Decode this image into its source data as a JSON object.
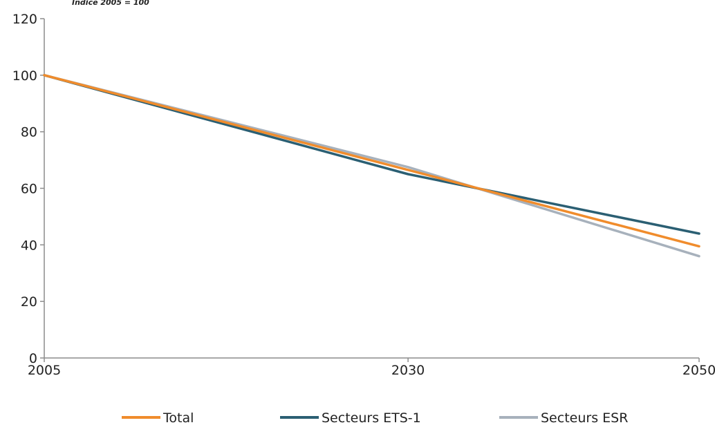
{
  "chart_data": {
    "type": "line",
    "subtitle": "Indice 2005 = 100",
    "x": [
      2005,
      2030,
      2050
    ],
    "xticks": [
      "2005",
      "2030",
      "2050"
    ],
    "yticks": [
      "0",
      "20",
      "40",
      "60",
      "80",
      "100",
      "120"
    ],
    "ylim": [
      0,
      120
    ],
    "grid": false,
    "legend_position": "bottom",
    "series": [
      {
        "name": "Total",
        "color": "#F08C2C",
        "values": [
          100,
          66.5,
          39.5
        ]
      },
      {
        "name": "Secteurs ETS-1",
        "color": "#2B5F73",
        "values": [
          100,
          65,
          44
        ]
      },
      {
        "name": "Secteurs ESR",
        "color": "#A7B1BC",
        "values": [
          100,
          67.5,
          36
        ]
      }
    ]
  }
}
